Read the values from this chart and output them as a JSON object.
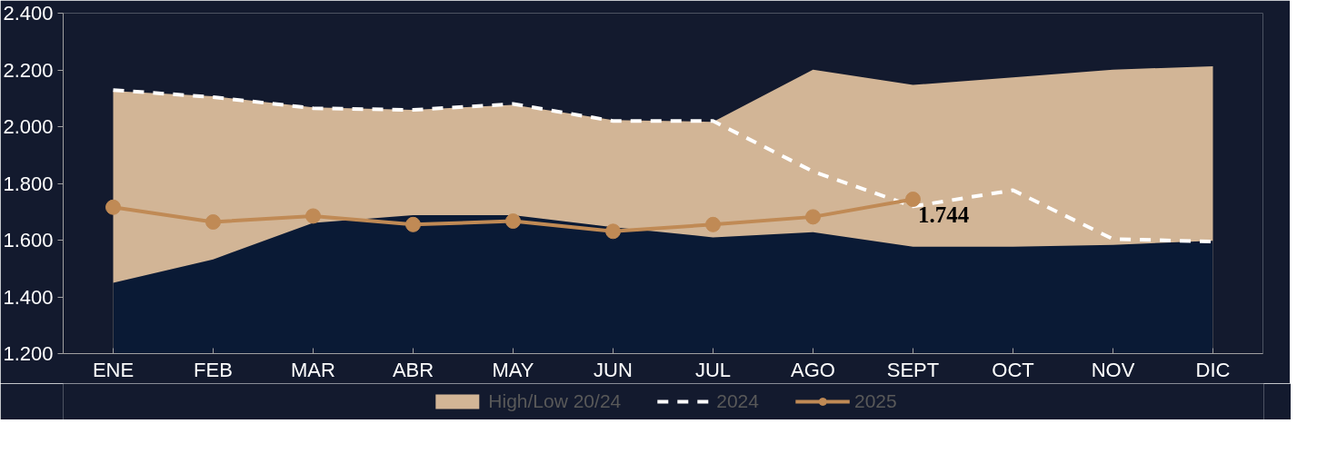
{
  "chart_data": {
    "type": "line",
    "categories": [
      "ENE",
      "FEB",
      "MAR",
      "ABR",
      "MAY",
      "JUN",
      "JUL",
      "AGO",
      "SEPT",
      "OCT",
      "NOV",
      "DIC"
    ],
    "series": [
      {
        "type": "area",
        "name": "High/Low 20/24",
        "color": "#d2b596",
        "values": [
          2126,
          2107,
          2068,
          2059,
          2077,
          2023,
          2017,
          2201,
          2147,
          2174,
          2201,
          2213
        ]
      },
      {
        "type": "area",
        "color": "#0a1a35",
        "values": [
          1450,
          1532,
          1661,
          1688,
          1688,
          1646,
          1610,
          1628,
          1577,
          1577,
          1583,
          1598
        ]
      },
      {
        "name": "2024",
        "color": "#ffffff",
        "line_style": "dashed",
        "marker": "none",
        "values": [
          2129,
          2104,
          2065,
          2059,
          2080,
          2020,
          2020,
          1842,
          1719,
          1776,
          1604,
          1595
        ]
      },
      {
        "name": "2025",
        "color": "#c08a55",
        "line_style": "solid",
        "marker": "circle",
        "values": [
          1716,
          1664,
          1685,
          1655,
          1667,
          1631,
          1655,
          1682,
          1744,
          null,
          null,
          null
        ],
        "value_labels": [
          null,
          null,
          null,
          null,
          null,
          null,
          null,
          null,
          "1.744",
          null,
          null,
          null
        ]
      }
    ],
    "ylim": [
      1200,
      2400
    ],
    "yticks": [
      {
        "value": 1200,
        "label": "1.200"
      },
      {
        "value": 1400,
        "label": "1.400"
      },
      {
        "value": 1600,
        "label": "1.600"
      },
      {
        "value": 1800,
        "label": "1.800"
      },
      {
        "value": 2000,
        "label": "2.000"
      },
      {
        "value": 2200,
        "label": "2.200"
      },
      {
        "value": 2400,
        "label": "2.400"
      }
    ],
    "grid": false,
    "legend": "bottom"
  }
}
